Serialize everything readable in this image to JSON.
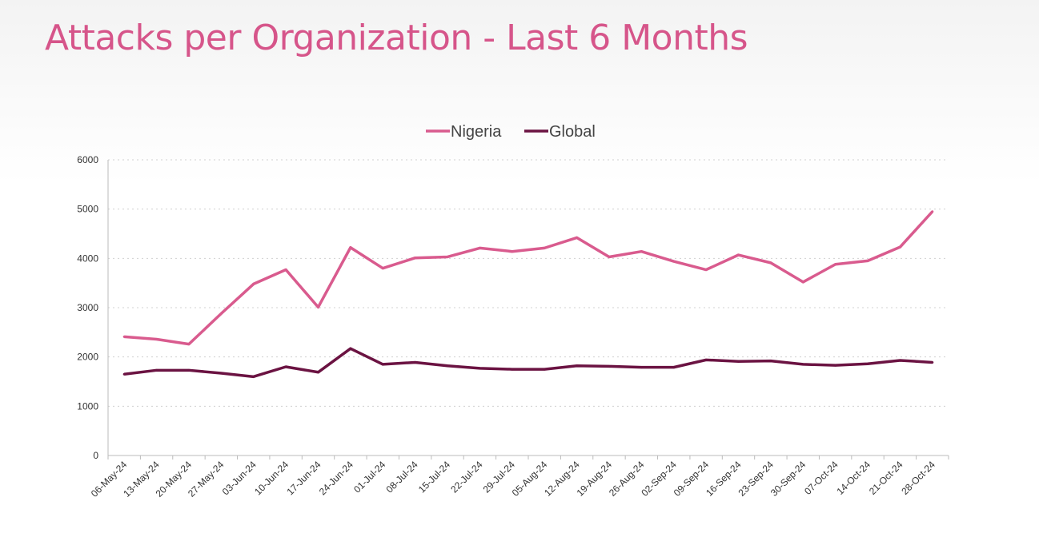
{
  "title": "Attacks per Organization - Last 6 Months",
  "chart_data": {
    "type": "line",
    "title": "Attacks per Organization - Last 6 Months",
    "xlabel": "",
    "ylabel": "",
    "ylim": [
      0,
      6000
    ],
    "yticks": [
      "0",
      "1000",
      "2000",
      "3000",
      "4000",
      "5000",
      "6000"
    ],
    "grid": true,
    "legend_position": "top-center",
    "categories": [
      "06-May-24",
      "13-May-24",
      "20-May-24",
      "27-May-24",
      "03-Jun-24",
      "10-Jun-24",
      "17-Jun-24",
      "24-Jun-24",
      "01-Jul-24",
      "08-Jul-24",
      "15-Jul-24",
      "22-Jul-24",
      "29-Jul-24",
      "05-Aug-24",
      "12-Aug-24",
      "19-Aug-24",
      "26-Aug-24",
      "02-Sep-24",
      "09-Sep-24",
      "16-Sep-24",
      "23-Sep-24",
      "30-Sep-24",
      "07-Oct-24",
      "14-Oct-24",
      "21-Oct-24",
      "28-Oct-24"
    ],
    "series": [
      {
        "name": "Nigeria",
        "color": "#d95b8e",
        "values": [
          2410,
          2360,
          2260,
          2880,
          3480,
          3770,
          3010,
          4220,
          3800,
          4010,
          4030,
          4210,
          4140,
          4210,
          4420,
          4030,
          4140,
          3940,
          3770,
          4070,
          3910,
          3520,
          3880,
          3950,
          4230,
          4950
        ]
      },
      {
        "name": "Global",
        "color": "#6b1342",
        "values": [
          1650,
          1730,
          1730,
          1670,
          1600,
          1800,
          1690,
          2170,
          1850,
          1890,
          1820,
          1770,
          1750,
          1750,
          1820,
          1810,
          1790,
          1790,
          1940,
          1910,
          1920,
          1850,
          1830,
          1860,
          1930,
          1890
        ]
      }
    ]
  }
}
